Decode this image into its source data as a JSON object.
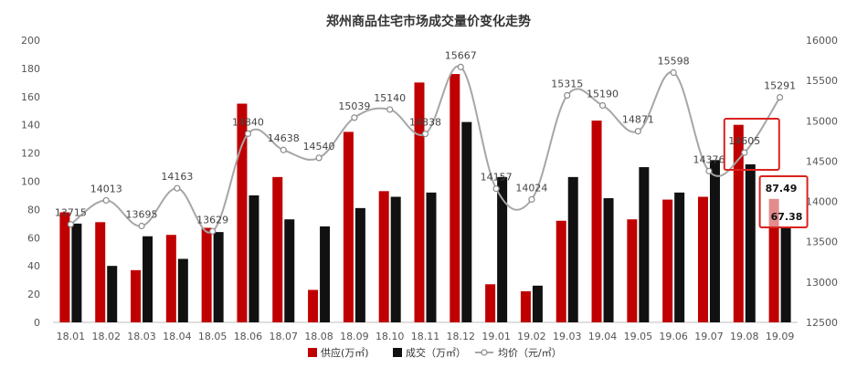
{
  "chart_data": {
    "type": "bar",
    "title": "郑州商品住宅市场成交量价变化走势",
    "categories": [
      "18.01",
      "18.02",
      "18.03",
      "18.04",
      "18.05",
      "18.06",
      "18.07",
      "18.08",
      "18.09",
      "18.10",
      "18.11",
      "18.12",
      "19.01",
      "19.02",
      "19.03",
      "19.04",
      "19.05",
      "19.06",
      "19.07",
      "19.08",
      "19.09"
    ],
    "series": [
      {
        "name": "供应(万㎡)",
        "kind": "bar",
        "axis": "left",
        "color": "#c00000",
        "values": [
          78,
          71,
          37,
          62,
          67,
          155,
          103,
          23,
          135,
          93,
          170,
          176,
          27,
          22,
          72,
          143,
          73,
          87,
          89,
          140,
          87.49
        ]
      },
      {
        "name": "成交（万㎡）",
        "kind": "bar",
        "axis": "left",
        "color": "#111111",
        "values": [
          70,
          40,
          61,
          45,
          64,
          90,
          73,
          68,
          81,
          89,
          92,
          142,
          103,
          26,
          103,
          88,
          110,
          92,
          115,
          112,
          67.38
        ]
      },
      {
        "name": "均价（元/㎡）",
        "kind": "line",
        "axis": "right",
        "color": "#a6a6a6",
        "values": [
          13715,
          14013,
          13695,
          14163,
          13629,
          14840,
          14638,
          14540,
          15039,
          15140,
          14838,
          15667,
          14157,
          14024,
          15315,
          15190,
          14871,
          15598,
          14376,
          14605,
          15291
        ]
      }
    ],
    "price_labels": [
      "13715",
      "14013",
      "13695",
      "14163",
      "13629",
      "14840",
      "14638",
      "14540",
      "15039",
      "15140",
      "14838",
      "15667",
      "14157",
      "14024",
      "15315",
      "15190",
      "14871",
      "15598",
      "14376",
      "14605",
      "15291"
    ],
    "ylim_left": [
      0,
      200
    ],
    "yticks_left": [
      "0",
      "20",
      "40",
      "60",
      "80",
      "100",
      "120",
      "140",
      "160",
      "180",
      "200"
    ],
    "ylim_right": [
      12500,
      16000
    ],
    "yticks_right": [
      "12500",
      "13000",
      "13500",
      "14000",
      "14500",
      "15000",
      "15500",
      "16000"
    ],
    "legend_position": "bottom",
    "annotations": {
      "supply_last": "87.49",
      "deal_last": "67.38"
    },
    "highlight_color": "#d9231f"
  }
}
